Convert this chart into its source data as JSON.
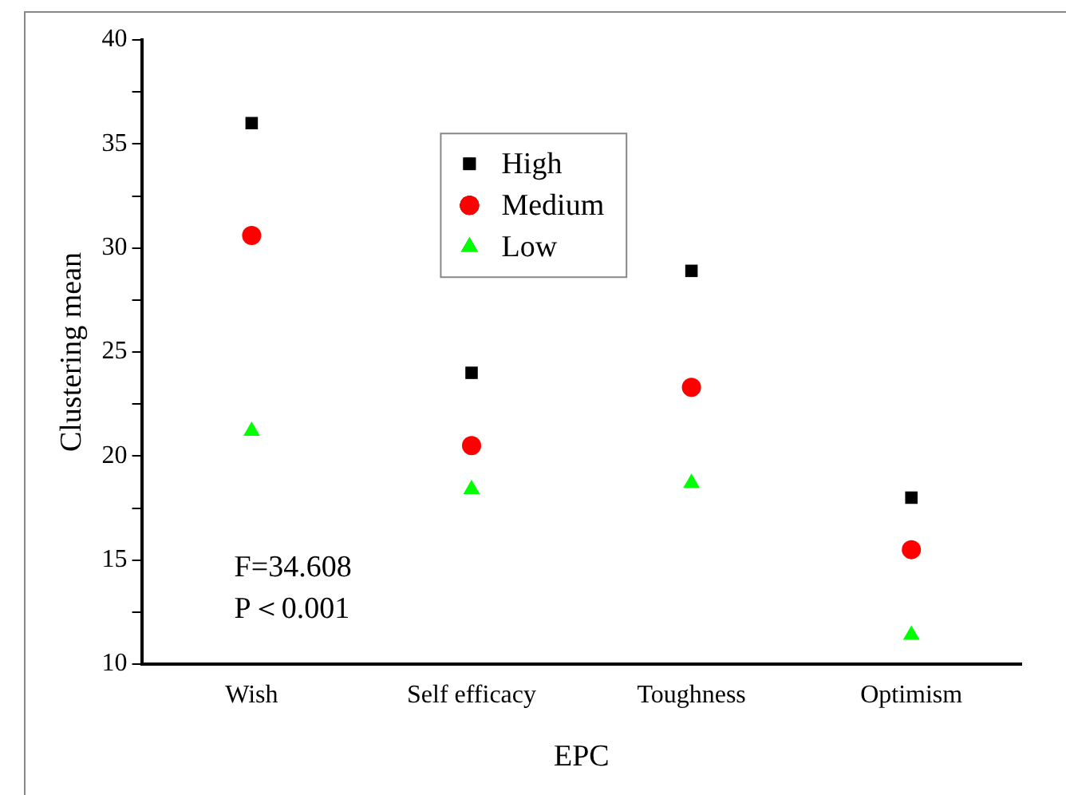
{
  "chart_data": {
    "type": "scatter",
    "xlabel": "EPC",
    "ylabel": "Clustering mean",
    "categories": [
      "Wish",
      "Self efficacy",
      "Toughness",
      "Optimism"
    ],
    "series": [
      {
        "name": "High",
        "color": "#000000",
        "marker": "square",
        "values": [
          36.0,
          24.0,
          28.9,
          18.0
        ]
      },
      {
        "name": "Medium",
        "color": "#ff0000",
        "marker": "circle",
        "values": [
          30.6,
          20.5,
          23.3,
          15.5
        ]
      },
      {
        "name": "Low",
        "color": "#00ff00",
        "marker": "triangle",
        "values": [
          21.2,
          18.4,
          18.7,
          11.4
        ]
      }
    ],
    "ylim": [
      10,
      40
    ],
    "yticks": [
      10,
      {
        "value": 12.5,
        "label": null
      },
      15,
      {
        "value": 17.5,
        "label": null
      },
      20,
      {
        "value": 22.5,
        "label": null
      },
      25,
      {
        "value": 27.5,
        "label": null
      },
      30,
      {
        "value": 32.5,
        "label": null
      },
      35,
      {
        "value": 37.5,
        "label": null
      },
      40
    ],
    "grid": false,
    "legend": "top",
    "annotations": [
      "F=34.608",
      "P＜0.001"
    ]
  }
}
